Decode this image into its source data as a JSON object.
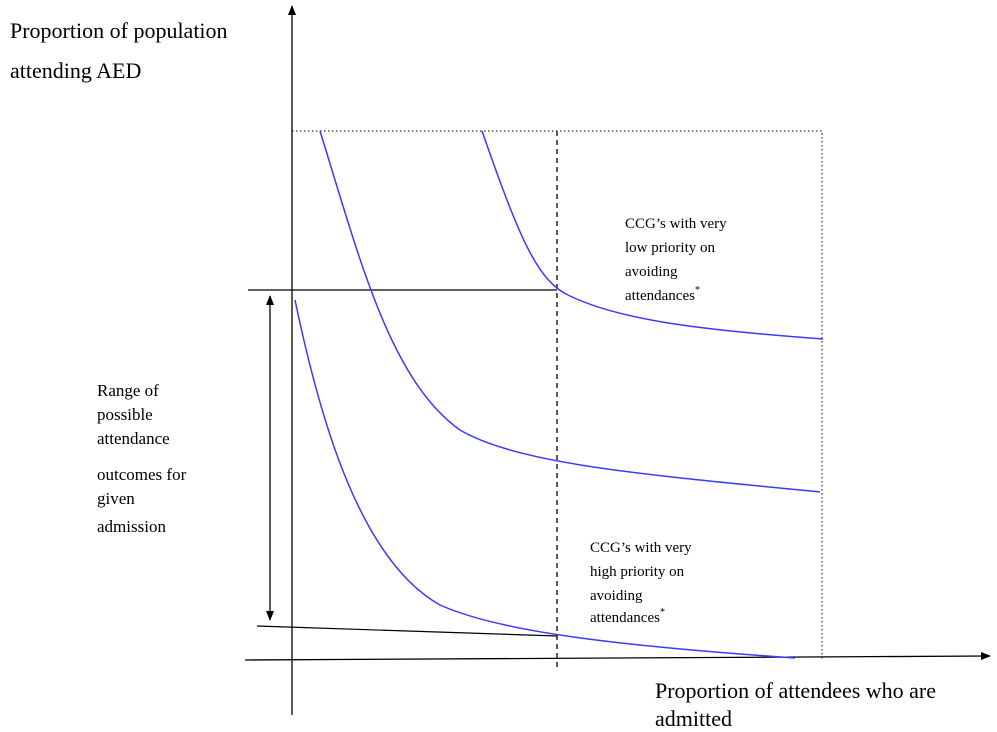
{
  "y_axis_label": [
    "Proportion of population",
    "attending AED"
  ],
  "x_axis_label": [
    "Proportion of attendees who are",
    "admitted"
  ],
  "low_priority_note": {
    "lines": [
      "CCG’s  with very",
      "low priority on",
      "avoiding",
      "attendances"
    ],
    "mark": "*"
  },
  "range_note": [
    "Range of",
    "possible",
    "attendance",
    "outcomes for",
    "given",
    "admission"
  ],
  "high_priority_note": {
    "lines": [
      "CCG’s  with very",
      "high priority on",
      "avoiding",
      "attendances"
    ],
    "mark": "*"
  }
}
